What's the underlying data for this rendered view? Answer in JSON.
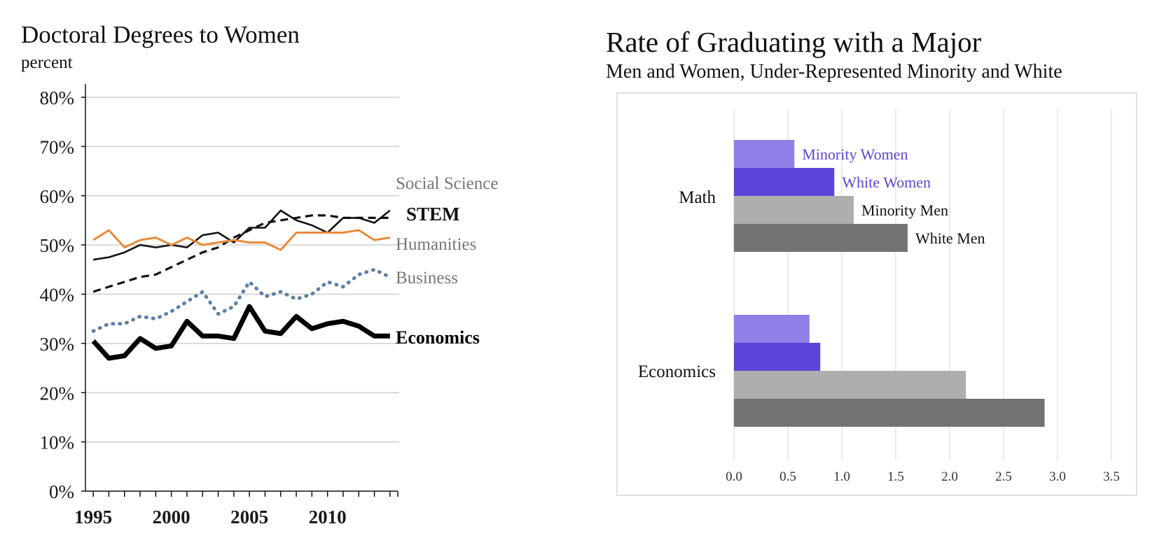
{
  "chart_data": [
    {
      "type": "line",
      "title": "Doctoral Degrees to Women",
      "subtitle": "percent",
      "xlim": [
        1994.5,
        2014.5
      ],
      "ylim": [
        0,
        0.82
      ],
      "x_ticks": [
        1995,
        2000,
        2005,
        2010
      ],
      "y_ticks": [
        0,
        0.1,
        0.2,
        0.3,
        0.4,
        0.5,
        0.6,
        0.7,
        0.8
      ],
      "y_tick_labels": [
        "0%",
        "10%",
        "20%",
        "30%",
        "40%",
        "50%",
        "60%",
        "70%",
        "80%"
      ],
      "grid": "horizontal",
      "x": [
        1995,
        1996,
        1997,
        1998,
        1999,
        2000,
        2001,
        2002,
        2003,
        2004,
        2005,
        2006,
        2007,
        2008,
        2009,
        2010,
        2011,
        2012,
        2013,
        2014
      ],
      "series": [
        {
          "name": "Social Science",
          "color": "#111111",
          "style": "solid-thin",
          "values": [
            0.47,
            0.475,
            0.485,
            0.5,
            0.495,
            0.5,
            0.495,
            0.52,
            0.525,
            0.505,
            0.535,
            0.535,
            0.57,
            0.55,
            0.54,
            0.525,
            0.555,
            0.555,
            0.545,
            0.57
          ]
        },
        {
          "name": "STEM",
          "color": "#111111",
          "style": "dashed",
          "values": [
            0.405,
            0.415,
            0.425,
            0.435,
            0.44,
            0.455,
            0.47,
            0.485,
            0.495,
            0.515,
            0.53,
            0.545,
            0.55,
            0.555,
            0.56,
            0.56,
            0.555,
            0.555,
            0.555,
            0.555
          ]
        },
        {
          "name": "Humanities",
          "color": "#e88a3a",
          "style": "solid",
          "values": [
            0.51,
            0.53,
            0.495,
            0.51,
            0.515,
            0.5,
            0.515,
            0.5,
            0.505,
            0.51,
            0.505,
            0.505,
            0.49,
            0.525,
            0.525,
            0.525,
            0.525,
            0.53,
            0.51,
            0.515
          ]
        },
        {
          "name": "Business",
          "color": "#5b7fa6",
          "style": "dotted",
          "values": [
            0.325,
            0.34,
            0.34,
            0.355,
            0.35,
            0.365,
            0.385,
            0.405,
            0.36,
            0.375,
            0.425,
            0.395,
            0.405,
            0.39,
            0.4,
            0.425,
            0.415,
            0.44,
            0.45,
            0.435
          ]
        },
        {
          "name": "Economics",
          "color": "#000000",
          "style": "solid-thick",
          "values": [
            0.305,
            0.27,
            0.275,
            0.31,
            0.29,
            0.295,
            0.345,
            0.315,
            0.315,
            0.31,
            0.375,
            0.325,
            0.32,
            0.355,
            0.33,
            0.34,
            0.345,
            0.335,
            0.315,
            0.315
          ]
        }
      ],
      "series_labels": [
        "Social Science",
        "STEM",
        "Humanities",
        "Business",
        "Economics"
      ]
    },
    {
      "type": "bar",
      "orientation": "horizontal",
      "title": "Rate of  Graduating with a Major",
      "subtitle": "Men and Women, Under-Represented Minority and White",
      "categories": [
        "Math",
        "Economics"
      ],
      "xlim": [
        0,
        3.5
      ],
      "x_ticks": [
        "0.0",
        "0.5",
        "1.0",
        "1.5",
        "2.0",
        "2.5",
        "3.0",
        "3.5"
      ],
      "grid": "vertical",
      "series": [
        {
          "name": "Minority  Women",
          "color": "#8f7fe6",
          "label_color": "#5a45d8",
          "values": [
            0.56,
            0.7
          ]
        },
        {
          "name": "White  Women",
          "color": "#5a45d8",
          "label_color": "#5a45d8",
          "values": [
            0.93,
            0.8
          ]
        },
        {
          "name": "Minority  Men",
          "color": "#b0adad",
          "label_color": "#111111",
          "values": [
            1.11,
            2.15
          ]
        },
        {
          "name": "White  Men",
          "color": "#747171",
          "label_color": "#111111",
          "values": [
            1.61,
            2.88
          ]
        }
      ]
    }
  ]
}
